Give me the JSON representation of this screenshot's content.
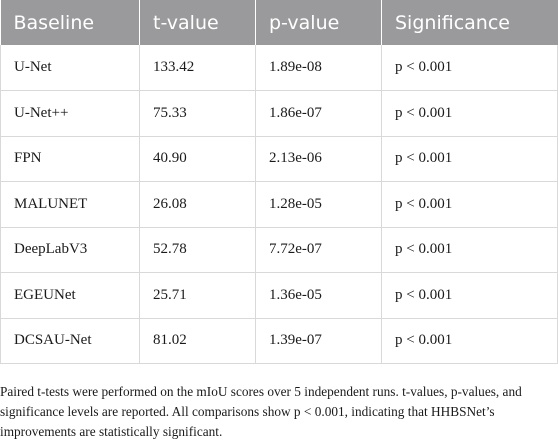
{
  "table": {
    "headers": [
      "Baseline",
      "t-value",
      "p-value",
      "Significance"
    ],
    "rows": [
      [
        "U-Net",
        "133.42",
        "1.89e-08",
        "p < 0.001"
      ],
      [
        "U-Net++",
        "75.33",
        "1.86e-07",
        "p < 0.001"
      ],
      [
        "FPN",
        "40.90",
        "2.13e-06",
        "p < 0.001"
      ],
      [
        "MALUNET",
        "26.08",
        "1.28e-05",
        "p < 0.001"
      ],
      [
        "DeepLabV3",
        "52.78",
        "7.72e-07",
        "p < 0.001"
      ],
      [
        "EGEUNet",
        "25.71",
        "1.36e-05",
        "p < 0.001"
      ],
      [
        "DCSAU-Net",
        "81.02",
        "1.39e-07",
        "p < 0.001"
      ]
    ]
  },
  "footnote": "Paired t-tests were performed on the mIoU scores over 5 independent runs. t-values, p-values, and significance levels are reported. All comparisons show p < 0.001, indicating that HHBSNet’s improvements are statistically significant.",
  "colors": {
    "header_bg": "#9a9a9c",
    "header_text": "#ffffff",
    "grid_line": "#d9d9d9"
  }
}
